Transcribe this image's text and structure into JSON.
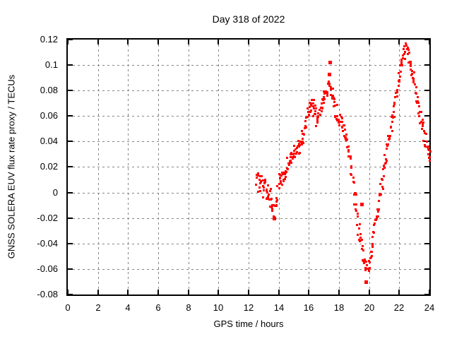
{
  "window": {
    "title": "Day 318 of 2022"
  },
  "style": {
    "point_color": "#ff0000",
    "grid_color": "#848484",
    "axis_color": "#000000",
    "background": "#ffffff"
  },
  "chart_data": {
    "type": "scatter",
    "title": "Day 318 of 2022",
    "xlabel": "GPS time / hours",
    "ylabel": "GNSS SOLERA EUV flux rate proxy / TECUs",
    "xlim": [
      0,
      24
    ],
    "ylim": [
      -0.08,
      0.12
    ],
    "grid": "dashed-major-both",
    "legend": "none",
    "marker": "filled-square",
    "xticks": [
      {
        "label": "0",
        "value": 0
      },
      {
        "label": "2",
        "value": 2
      },
      {
        "label": "4",
        "value": 4
      },
      {
        "label": "6",
        "value": 6
      },
      {
        "label": "8",
        "value": 8
      },
      {
        "label": "10",
        "value": 10
      },
      {
        "label": "12",
        "value": 12
      },
      {
        "label": "14",
        "value": 14
      },
      {
        "label": "16",
        "value": 16
      },
      {
        "label": "18",
        "value": 18
      },
      {
        "label": "20",
        "value": 20
      },
      {
        "label": "22",
        "value": 22
      },
      {
        "label": "24",
        "value": 24
      }
    ],
    "yticks": [
      {
        "label": "-0.08",
        "value": -0.08
      },
      {
        "label": "-0.06",
        "value": -0.06
      },
      {
        "label": "-0.04",
        "value": -0.04
      },
      {
        "label": "-0.02",
        "value": -0.02
      },
      {
        "label": "0",
        "value": 0
      },
      {
        "label": "0.02",
        "value": 0.02
      },
      {
        "label": "0.04",
        "value": 0.04
      },
      {
        "label": "0.06",
        "value": 0.06
      },
      {
        "label": "0.08",
        "value": 0.08
      },
      {
        "label": "0.1",
        "value": 0.1
      },
      {
        "label": "0.12",
        "value": 0.12
      }
    ],
    "series": [
      {
        "name": "GNSS SOLERA EUV flux rate proxy",
        "color": "#ff0000",
        "noise_halfwidth": 0.0055,
        "points_per_sample": 3,
        "points": [
          [
            12.5,
            0.009
          ],
          [
            12.58,
            0.01
          ],
          [
            12.66,
            0.006
          ],
          [
            12.74,
            0.011
          ],
          [
            12.82,
            0.004
          ],
          [
            12.9,
            0.009
          ],
          [
            12.98,
            0.002
          ],
          [
            13.06,
            0.006
          ],
          [
            13.14,
            -0.002
          ],
          [
            13.22,
            0.004
          ],
          [
            13.3,
            -0.004
          ],
          [
            13.38,
            0.002
          ],
          [
            13.46,
            -0.008
          ],
          [
            13.54,
            -0.013
          ],
          [
            13.62,
            -0.009
          ],
          [
            13.7,
            -0.015
          ],
          [
            13.78,
            -0.01
          ],
          [
            13.86,
            -0.004
          ],
          [
            13.94,
            0.004
          ],
          [
            14.02,
            0.01
          ],
          [
            14.1,
            0.012
          ],
          [
            14.18,
            0.009
          ],
          [
            14.26,
            0.014
          ],
          [
            14.34,
            0.011
          ],
          [
            14.42,
            0.016
          ],
          [
            14.5,
            0.019
          ],
          [
            14.58,
            0.022
          ],
          [
            14.66,
            0.02
          ],
          [
            14.74,
            0.025
          ],
          [
            14.82,
            0.028
          ],
          [
            14.9,
            0.03
          ],
          [
            14.98,
            0.032
          ],
          [
            15.06,
            0.03
          ],
          [
            15.14,
            0.034
          ],
          [
            15.22,
            0.036
          ],
          [
            15.3,
            0.038
          ],
          [
            15.38,
            0.036
          ],
          [
            15.46,
            0.04
          ],
          [
            15.54,
            0.043
          ],
          [
            15.62,
            0.046
          ],
          [
            15.7,
            0.05
          ],
          [
            15.78,
            0.054
          ],
          [
            15.86,
            0.058
          ],
          [
            15.94,
            0.062
          ],
          [
            16.02,
            0.066
          ],
          [
            16.1,
            0.07
          ],
          [
            16.18,
            0.072
          ],
          [
            16.26,
            0.07
          ],
          [
            16.34,
            0.065
          ],
          [
            16.42,
            0.061
          ],
          [
            16.5,
            0.057
          ],
          [
            16.58,
            0.056
          ],
          [
            16.66,
            0.059
          ],
          [
            16.74,
            0.063
          ],
          [
            16.82,
            0.068
          ],
          [
            16.9,
            0.072
          ],
          [
            16.98,
            0.075
          ],
          [
            17.06,
            0.078
          ],
          [
            17.14,
            0.08
          ],
          [
            17.22,
            0.082
          ],
          [
            17.3,
            0.081
          ],
          [
            17.38,
            0.082
          ],
          [
            17.46,
            0.08
          ],
          [
            17.54,
            0.077
          ],
          [
            17.62,
            0.072
          ],
          [
            17.7,
            0.068
          ],
          [
            17.78,
            0.064
          ],
          [
            17.86,
            0.06
          ],
          [
            17.94,
            0.057
          ],
          [
            18.02,
            0.058
          ],
          [
            18.1,
            0.056
          ],
          [
            18.18,
            0.053
          ],
          [
            18.26,
            0.051
          ],
          [
            18.34,
            0.048
          ],
          [
            18.42,
            0.045
          ],
          [
            18.5,
            0.041
          ],
          [
            18.58,
            0.037
          ],
          [
            18.66,
            0.032
          ],
          [
            18.74,
            0.026
          ],
          [
            18.82,
            0.019
          ],
          [
            18.9,
            0.011
          ],
          [
            18.98,
            0.003
          ],
          [
            19.06,
            -0.005
          ],
          [
            19.14,
            -0.013
          ],
          [
            19.22,
            -0.021
          ],
          [
            19.3,
            -0.028
          ],
          [
            19.38,
            -0.034
          ],
          [
            19.46,
            -0.04
          ],
          [
            19.54,
            -0.045
          ],
          [
            19.62,
            -0.049
          ],
          [
            19.7,
            -0.053
          ],
          [
            19.78,
            -0.056
          ],
          [
            19.86,
            -0.059
          ],
          [
            19.94,
            -0.06
          ],
          [
            20.02,
            -0.056
          ],
          [
            20.1,
            -0.049
          ],
          [
            20.18,
            -0.042
          ],
          [
            20.26,
            -0.036
          ],
          [
            20.34,
            -0.029
          ],
          [
            20.42,
            -0.023
          ],
          [
            20.5,
            -0.016
          ],
          [
            20.58,
            -0.01
          ],
          [
            20.66,
            -0.004
          ],
          [
            20.74,
            0.002
          ],
          [
            20.82,
            0.008
          ],
          [
            20.9,
            0.014
          ],
          [
            20.98,
            0.02
          ],
          [
            21.06,
            0.025
          ],
          [
            21.14,
            0.03
          ],
          [
            21.22,
            0.035
          ],
          [
            21.3,
            0.041
          ],
          [
            21.38,
            0.047
          ],
          [
            21.46,
            0.053
          ],
          [
            21.54,
            0.059
          ],
          [
            21.62,
            0.065
          ],
          [
            21.7,
            0.071
          ],
          [
            21.78,
            0.077
          ],
          [
            21.86,
            0.084
          ],
          [
            21.94,
            0.09
          ],
          [
            22.02,
            0.096
          ],
          [
            22.1,
            0.101
          ],
          [
            22.18,
            0.105
          ],
          [
            22.26,
            0.108
          ],
          [
            22.34,
            0.11
          ],
          [
            22.42,
            0.112
          ],
          [
            22.5,
            0.112
          ],
          [
            22.58,
            0.11
          ],
          [
            22.66,
            0.107
          ],
          [
            22.74,
            0.102
          ],
          [
            22.82,
            0.097
          ],
          [
            22.9,
            0.091
          ],
          [
            22.98,
            0.085
          ],
          [
            23.06,
            0.08
          ],
          [
            23.14,
            0.075
          ],
          [
            23.22,
            0.07
          ],
          [
            23.3,
            0.064
          ],
          [
            23.38,
            0.059
          ],
          [
            23.46,
            0.054
          ],
          [
            23.54,
            0.05
          ],
          [
            23.62,
            0.046
          ],
          [
            23.7,
            0.042
          ],
          [
            23.78,
            0.038
          ],
          [
            23.86,
            0.035
          ],
          [
            23.94,
            0.031
          ],
          [
            24.0,
            0.028
          ]
        ],
        "outliers": [
          [
            13.7,
            -0.02
          ],
          [
            17.36,
            0.093
          ],
          [
            17.4,
            0.102
          ],
          [
            19.52,
            -0.009
          ],
          [
            19.76,
            -0.07
          ]
        ]
      }
    ]
  }
}
